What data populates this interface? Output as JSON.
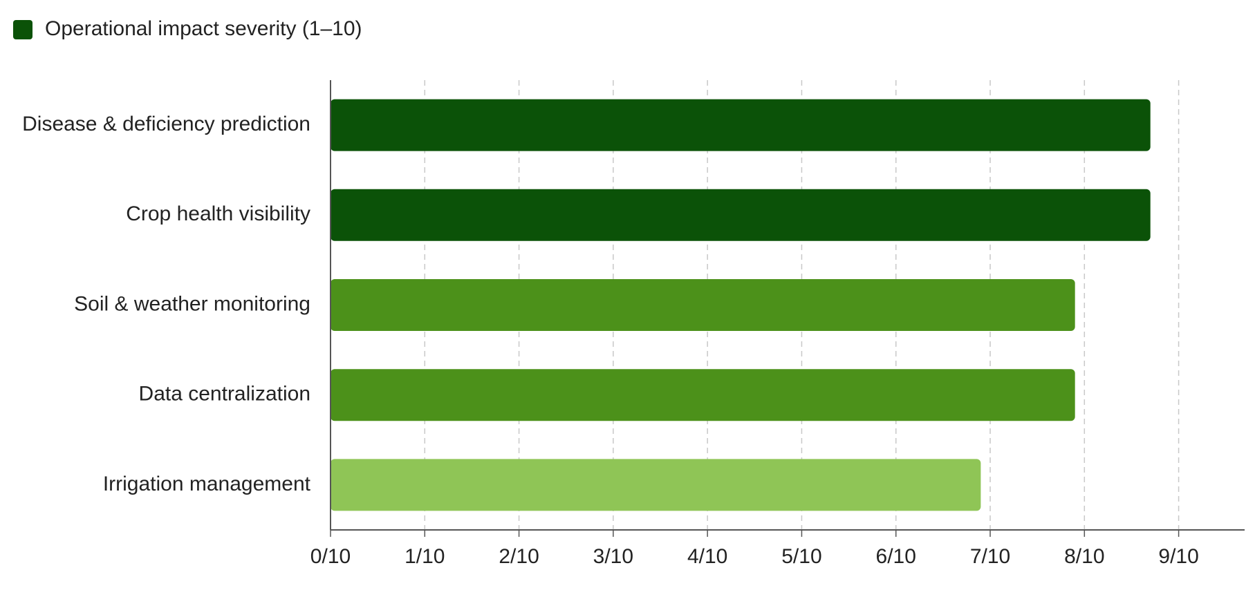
{
  "chart_data": {
    "type": "hbar",
    "categories": [
      "Disease & deficiency prediction",
      "Crop health visibility",
      "Soil & weather monitoring",
      "Data centralization",
      "Irrigation management"
    ],
    "series": [
      {
        "name": "Operational impact severity (1–10)",
        "color": "#0b5208",
        "values": [
          8.7,
          8.7,
          7.9,
          7.9,
          6.9
        ],
        "colors": [
          "#0b5208",
          "#0b5208",
          "#4c911a",
          "#4c911a",
          "#8fc556"
        ]
      }
    ],
    "xlim": [
      0,
      9.7
    ],
    "xticks": [
      {
        "value": 0,
        "label": "0/10"
      },
      {
        "value": 1,
        "label": "1/10"
      },
      {
        "value": 2,
        "label": "2/10"
      },
      {
        "value": 3,
        "label": "3/10"
      },
      {
        "value": 4,
        "label": "4/10"
      },
      {
        "value": 5,
        "label": "5/10"
      },
      {
        "value": 6,
        "label": "6/10"
      },
      {
        "value": 7,
        "label": "7/10"
      },
      {
        "value": 8,
        "label": "8/10"
      },
      {
        "value": 9,
        "label": "9/10"
      }
    ],
    "grid": true,
    "legend": "top-left"
  }
}
